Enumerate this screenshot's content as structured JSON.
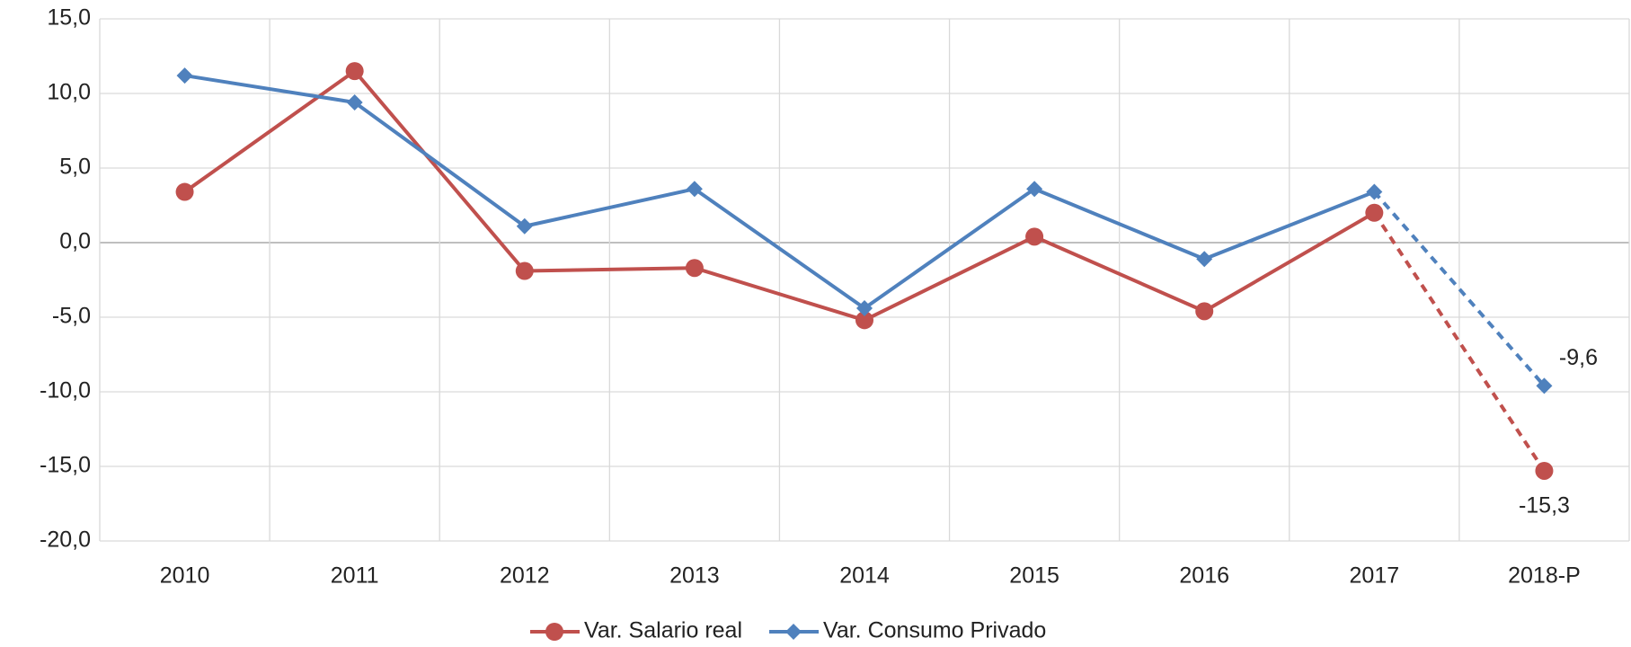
{
  "chart_data": {
    "type": "line",
    "categories": [
      "2010",
      "2011",
      "2012",
      "2013",
      "2014",
      "2015",
      "2016",
      "2017",
      "2018-P"
    ],
    "series": [
      {
        "name": "Var. Salario real",
        "color": "#c0504d",
        "marker": "circle",
        "values": [
          3.4,
          11.5,
          -1.9,
          -1.7,
          -5.2,
          0.4,
          -4.6,
          2.0,
          -15.3
        ],
        "value_labels": [
          null,
          null,
          null,
          null,
          null,
          null,
          null,
          null,
          "-15,3"
        ]
      },
      {
        "name": "Var. Consumo Privado",
        "color": "#4f81bd",
        "marker": "diamond",
        "values": [
          11.2,
          9.4,
          1.1,
          3.6,
          -4.4,
          3.6,
          -1.1,
          3.4,
          -9.6
        ],
        "value_labels": [
          null,
          null,
          null,
          null,
          null,
          null,
          null,
          null,
          "-9,6"
        ]
      }
    ],
    "ylim": [
      -20,
      15
    ],
    "yticks": [
      {
        "value": -20,
        "label": "-20,0"
      },
      {
        "value": -15,
        "label": "-15,0"
      },
      {
        "value": -10,
        "label": "-10,0"
      },
      {
        "value": -5,
        "label": "-5,0"
      },
      {
        "value": 0,
        "label": "0,0"
      },
      {
        "value": 5,
        "label": "5,0"
      },
      {
        "value": 10,
        "label": "10,0"
      },
      {
        "value": 15,
        "label": "15,0"
      }
    ],
    "grid": true,
    "dashed_last_segment": true,
    "legend": "bottom"
  }
}
